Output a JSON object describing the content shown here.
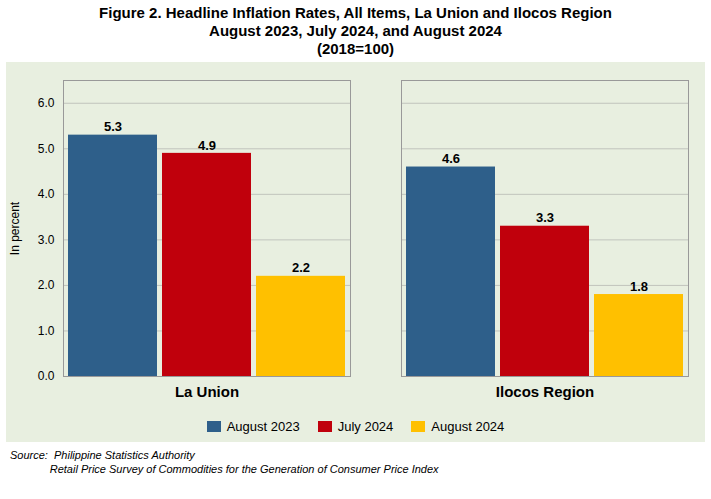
{
  "chart_data": {
    "type": "bar",
    "title": "Figure 2.  Headline Inflation Rates, All Items, La Union and Ilocos Region\nAugust 2023, July 2024, and August 2024\n(2018=100)",
    "categories": [
      "La Union",
      "Ilocos Region"
    ],
    "series": [
      {
        "name": "August 2023",
        "color": "#2E5F8A",
        "values": [
          5.3,
          4.6
        ]
      },
      {
        "name": "July 2024",
        "color": "#C0000C",
        "values": [
          4.9,
          3.3
        ]
      },
      {
        "name": "August 2024",
        "color": "#FFC000",
        "values": [
          2.2,
          1.8
        ]
      }
    ],
    "ylabel": "In percent",
    "ylim": [
      0,
      6.5
    ],
    "yticks": [
      {
        "value": 0,
        "label": "0.0"
      },
      {
        "value": 1,
        "label": "1.0"
      },
      {
        "value": 2,
        "label": "2.0"
      },
      {
        "value": 3,
        "label": "3.0"
      },
      {
        "value": 4,
        "label": "4.0"
      },
      {
        "value": 5,
        "label": "5.0"
      },
      {
        "value": 6,
        "label": "6.0"
      }
    ],
    "grid": true,
    "data_labels": true,
    "legend": "bottom",
    "caption": [
      "Source:  Philippine Statistics Authority",
      "             Retail Price Survey of Commodities for the Generation of Consumer Price Index"
    ]
  }
}
